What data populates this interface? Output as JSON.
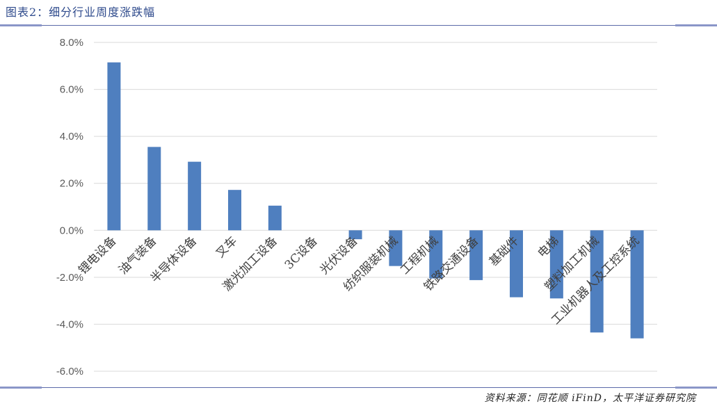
{
  "figure": {
    "title": "图表2：细分行业周度涨跌幅",
    "source": "资料来源：同花顺 iFinD，太平洋证券研究院"
  },
  "colors": {
    "bar": "#4f7fbf",
    "grid": "#d9d9d9",
    "axis": "#d9d9d9",
    "tick_text": "#595959",
    "label_text": "#404040"
  },
  "chart_data": {
    "type": "bar",
    "title": "",
    "xlabel": "",
    "ylabel": "",
    "categories": [
      "锂电设备",
      "油气装备",
      "半导体设备",
      "叉车",
      "激光加工设备",
      "3C设备",
      "光伏设备",
      "纺织服装机械",
      "工程机械",
      "铁路交通设备",
      "基础件",
      "电梯",
      "塑料加工机械",
      "工业机器人及工控系统"
    ],
    "values": [
      7.15,
      3.55,
      2.92,
      1.72,
      1.05,
      0.0,
      -0.38,
      -1.52,
      -2.05,
      -2.12,
      -2.85,
      -2.9,
      -4.35,
      -4.6
    ],
    "ylim": [
      -6,
      8
    ],
    "yticks": [
      -6,
      -4,
      -2,
      0,
      2,
      4,
      6,
      8
    ],
    "ytick_labels": [
      "-6.0%",
      "-4.0%",
      "-2.0%",
      "0.0%",
      "2.0%",
      "4.0%",
      "6.0%",
      "8.0%"
    ],
    "grid": true,
    "legend": "none"
  }
}
